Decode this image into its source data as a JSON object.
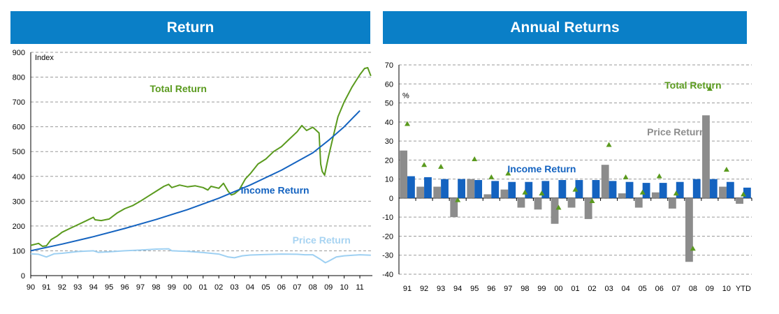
{
  "panels": {
    "left_title": "Return",
    "right_title": "Annual Returns"
  },
  "colors": {
    "banner": "#0a7fc7",
    "total": "#5a9a1e",
    "income": "#1463c0",
    "price": "#9ed0f2",
    "price_label": "#a8d4f2",
    "bar_gray": "#8c8c8c",
    "gray_label": "#8c8c8c",
    "marker": "#5a9a1e"
  },
  "chart_data": [
    {
      "type": "line",
      "title": "Return",
      "ylabel": "Index",
      "ylim": [
        0,
        900
      ],
      "yticks": [
        0,
        100,
        200,
        300,
        400,
        500,
        600,
        700,
        800,
        900
      ],
      "xlim": [
        1990,
        2011.8
      ],
      "xticks": [
        1990,
        1991,
        1992,
        1993,
        1994,
        1995,
        1996,
        1997,
        1998,
        1999,
        2000,
        2001,
        2002,
        2003,
        2004,
        2005,
        2006,
        2007,
        2008,
        2009,
        2010,
        2011
      ],
      "xtick_labels": [
        "90",
        "91",
        "92",
        "93",
        "94",
        "95",
        "96",
        "97",
        "98",
        "99",
        "00",
        "01",
        "02",
        "03",
        "04",
        "05",
        "06",
        "07",
        "08",
        "09",
        "10",
        "11"
      ],
      "grid": true,
      "series": [
        {
          "name": "Total Return",
          "color": "#5a9a1e",
          "label_year": 1997.6,
          "label_value": 740,
          "points": [
            [
              1990,
              122
            ],
            [
              1990.5,
              130
            ],
            [
              1990.75,
              118
            ],
            [
              1991,
              120
            ],
            [
              1991.3,
              145
            ],
            [
              1991.7,
              160
            ],
            [
              1992,
              175
            ],
            [
              1992.5,
              190
            ],
            [
              1993,
              205
            ],
            [
              1993.5,
              220
            ],
            [
              1994,
              235
            ],
            [
              1994.1,
              225
            ],
            [
              1994.5,
              222
            ],
            [
              1995,
              228
            ],
            [
              1995.5,
              252
            ],
            [
              1996,
              270
            ],
            [
              1996.5,
              282
            ],
            [
              1997,
              300
            ],
            [
              1997.5,
              320
            ],
            [
              1998,
              340
            ],
            [
              1998.5,
              360
            ],
            [
              1998.8,
              368
            ],
            [
              1999,
              355
            ],
            [
              1999.5,
              365
            ],
            [
              2000,
              358
            ],
            [
              2000.5,
              362
            ],
            [
              2001,
              355
            ],
            [
              2001.3,
              345
            ],
            [
              2001.5,
              360
            ],
            [
              2002,
              352
            ],
            [
              2002.3,
              372
            ],
            [
              2002.6,
              340
            ],
            [
              2002.8,
              325
            ],
            [
              2003,
              330
            ],
            [
              2003.3,
              345
            ],
            [
              2003.7,
              390
            ],
            [
              2004,
              410
            ],
            [
              2004.5,
              450
            ],
            [
              2005,
              470
            ],
            [
              2005.5,
              500
            ],
            [
              2006,
              520
            ],
            [
              2006.5,
              550
            ],
            [
              2007,
              580
            ],
            [
              2007.3,
              605
            ],
            [
              2007.6,
              585
            ],
            [
              2008,
              598
            ],
            [
              2008.4,
              575
            ],
            [
              2008.5,
              450
            ],
            [
              2008.6,
              420
            ],
            [
              2008.75,
              405
            ],
            [
              2008.9,
              450
            ],
            [
              2009,
              480
            ],
            [
              2009.3,
              560
            ],
            [
              2009.6,
              640
            ],
            [
              2010,
              700
            ],
            [
              2010.5,
              760
            ],
            [
              2011,
              810
            ],
            [
              2011.3,
              835
            ],
            [
              2011.5,
              838
            ],
            [
              2011.7,
              805
            ]
          ]
        },
        {
          "name": "Income Return",
          "color": "#1463c0",
          "label_year": 2003.4,
          "label_value": 330,
          "points": [
            [
              1990,
              100
            ],
            [
              1992,
              127
            ],
            [
              1994,
              157
            ],
            [
              1996,
              190
            ],
            [
              1998,
              226
            ],
            [
              2000,
              266
            ],
            [
              2002,
              312
            ],
            [
              2004,
              365
            ],
            [
              2006,
              425
            ],
            [
              2008,
              495
            ],
            [
              2009,
              545
            ],
            [
              2010,
              600
            ],
            [
              2011,
              665
            ]
          ]
        },
        {
          "name": "Price Return",
          "color": "#9ed0f2",
          "label_year": 2006.7,
          "label_value": 130,
          "points": [
            [
              1990,
              88
            ],
            [
              1990.5,
              86
            ],
            [
              1991,
              75
            ],
            [
              1991.5,
              88
            ],
            [
              1992,
              90
            ],
            [
              1993,
              97
            ],
            [
              1994,
              100
            ],
            [
              1994.3,
              94
            ],
            [
              1995,
              96
            ],
            [
              1996,
              100
            ],
            [
              1997,
              103
            ],
            [
              1998,
              107
            ],
            [
              1998.8,
              108
            ],
            [
              1999,
              100
            ],
            [
              2000,
              98
            ],
            [
              2001,
              93
            ],
            [
              2002,
              87
            ],
            [
              2002.6,
              75
            ],
            [
              2003,
              72
            ],
            [
              2003.5,
              80
            ],
            [
              2004,
              83
            ],
            [
              2005,
              85
            ],
            [
              2006,
              87
            ],
            [
              2007,
              86
            ],
            [
              2007.5,
              84
            ],
            [
              2008,
              84
            ],
            [
              2008.5,
              65
            ],
            [
              2008.8,
              52
            ],
            [
              2009,
              58
            ],
            [
              2009.5,
              75
            ],
            [
              2010,
              80
            ],
            [
              2011,
              84
            ],
            [
              2011.7,
              82
            ]
          ]
        }
      ]
    },
    {
      "type": "bar",
      "title": "Annual Returns",
      "ylabel": "%",
      "ylim": [
        -40,
        70
      ],
      "yticks": [
        -40,
        -30,
        -20,
        -10,
        0,
        10,
        20,
        30,
        40,
        50,
        60,
        70
      ],
      "grid": true,
      "categories": [
        "91",
        "92",
        "93",
        "94",
        "95",
        "96",
        "97",
        "98",
        "99",
        "00",
        "01",
        "02",
        "03",
        "04",
        "05",
        "06",
        "07",
        "08",
        "09",
        "10",
        "YTD"
      ],
      "series": [
        {
          "name": "Price Return",
          "kind": "bar",
          "color": "#8c8c8c",
          "label_category": 16,
          "label_value": 33,
          "values": [
            25,
            6,
            6,
            -10,
            10,
            2,
            4.5,
            -5,
            -6,
            -13.5,
            -5,
            -11,
            17.5,
            2.5,
            -5,
            3,
            -5.5,
            -33.5,
            43.5,
            6,
            -3
          ]
        },
        {
          "name": "Income Return",
          "kind": "bar",
          "color": "#1463c0",
          "label_category": 8,
          "label_value": 13.5,
          "values": [
            11.5,
            11,
            10,
            10,
            9.5,
            9,
            8.5,
            8.5,
            9,
            9.5,
            9.5,
            9.5,
            9,
            8.5,
            8,
            8,
            8.5,
            10,
            10,
            8.5,
            5.5
          ]
        },
        {
          "name": "Total Return",
          "kind": "marker",
          "color": "#5a9a1e",
          "label_category": 17,
          "label_value": 57.5,
          "values": [
            39,
            17.5,
            16.5,
            -1,
            20.5,
            11,
            13,
            3,
            2.5,
            -5,
            4.5,
            -1.5,
            28,
            11,
            3,
            11.5,
            2.5,
            -26.5,
            57.5,
            15,
            2
          ]
        }
      ]
    }
  ]
}
